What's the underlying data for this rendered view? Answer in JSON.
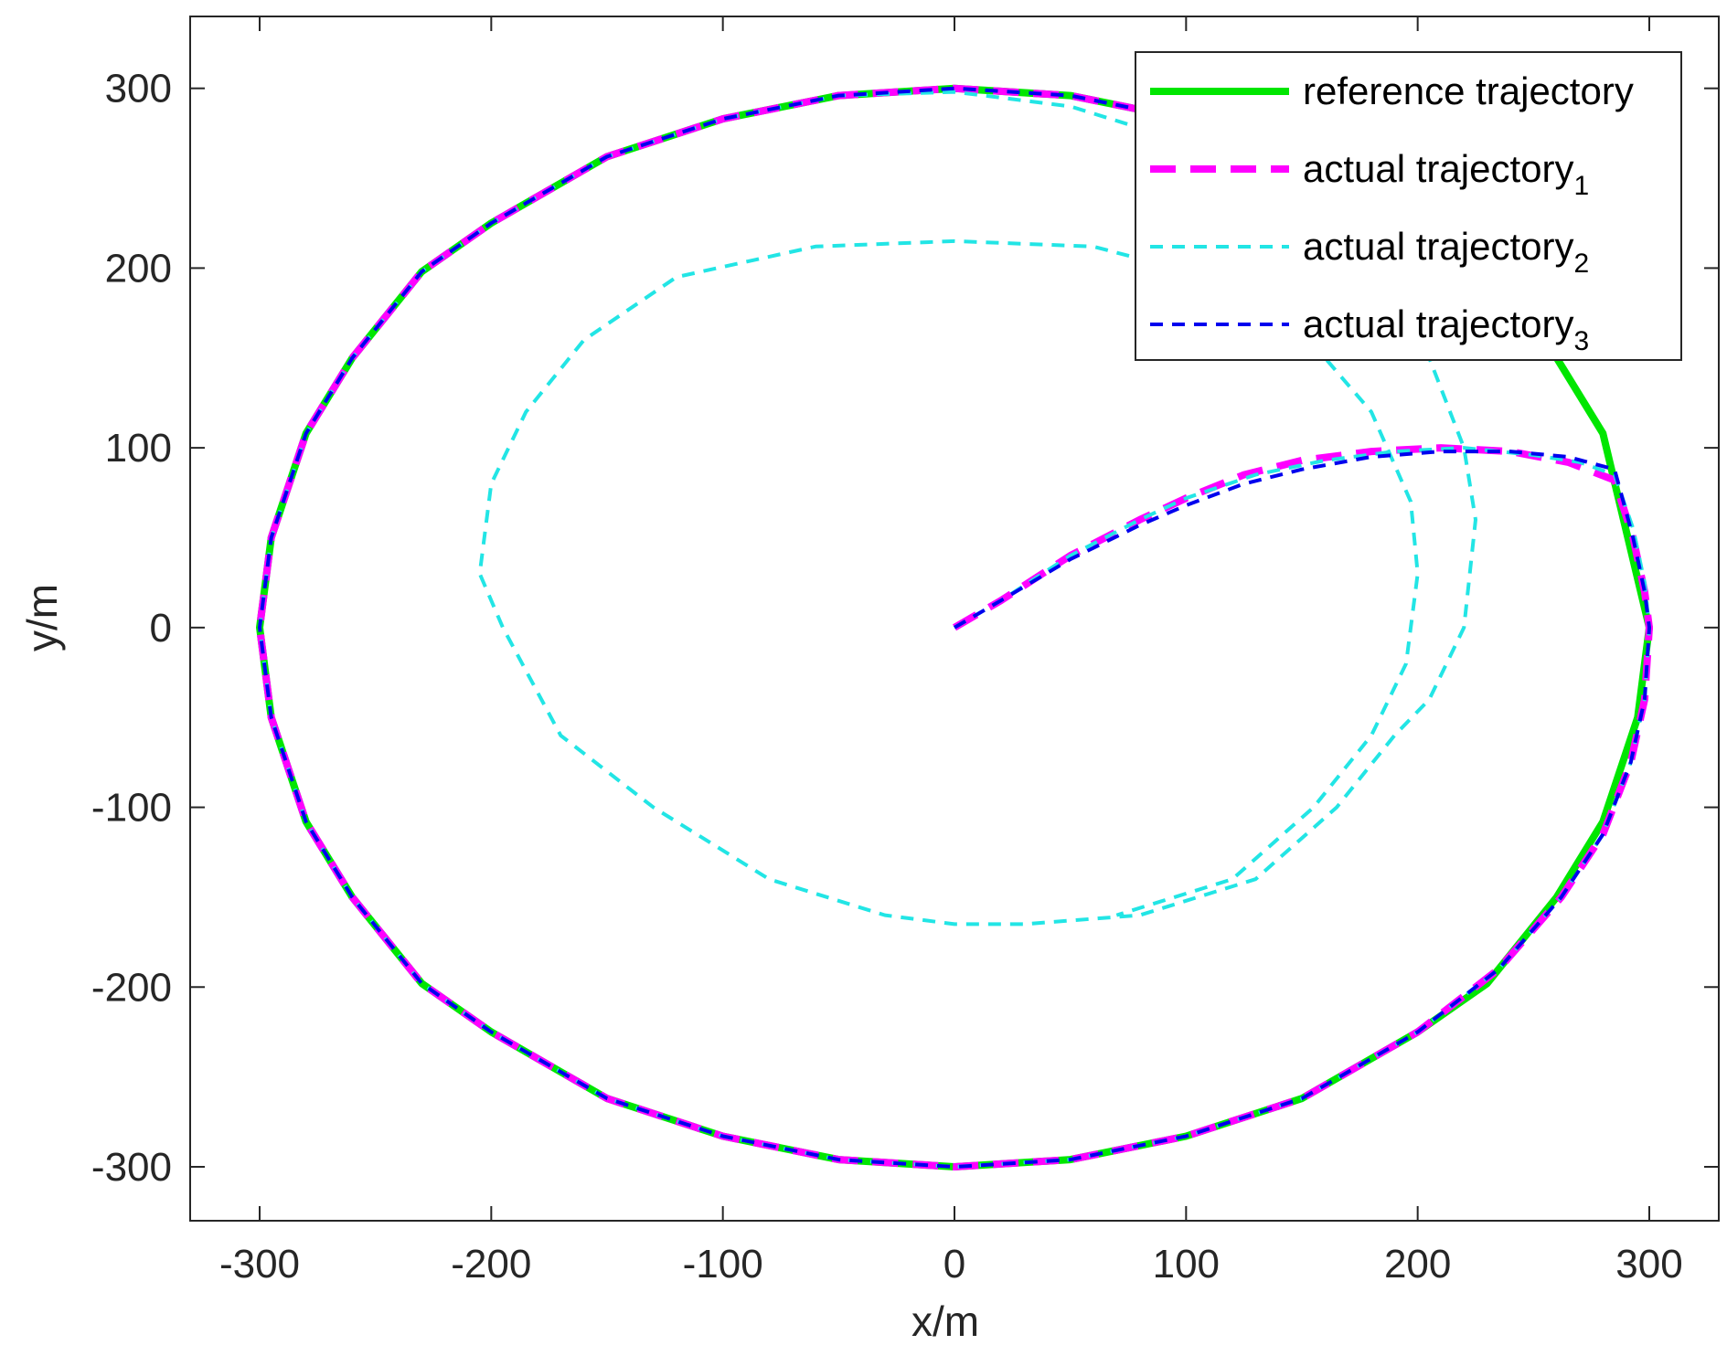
{
  "chart_data": {
    "type": "line",
    "title": "",
    "xlabel": "x/m",
    "ylabel": "y/m",
    "xlim": [
      -330,
      330
    ],
    "ylim": [
      -330,
      340
    ],
    "xticks": [
      -300,
      -200,
      -100,
      0,
      100,
      200,
      300
    ],
    "yticks": [
      -300,
      -200,
      -100,
      0,
      100,
      200,
      300
    ],
    "grid": false,
    "legend_position": "top-right",
    "series": [
      {
        "name": "reference trajectory",
        "legend_main": "reference trajectory",
        "legend_sub": "",
        "color": "#00e600",
        "style": "solid",
        "x": [
          300,
          280,
          260,
          230,
          200,
          150,
          100,
          50,
          0,
          -50,
          -100,
          -150,
          -200,
          -230,
          -260,
          -280,
          -295,
          -300,
          -295,
          -280,
          -260,
          -230,
          -200,
          -150,
          -100,
          -50,
          0,
          50,
          100,
          150,
          200,
          230,
          260,
          280,
          295,
          300
        ],
        "y": [
          0,
          108,
          150,
          198,
          225,
          262,
          283,
          296,
          300,
          296,
          283,
          262,
          225,
          198,
          150,
          108,
          50,
          0,
          -50,
          -108,
          -150,
          -198,
          -225,
          -262,
          -283,
          -296,
          -300,
          -296,
          -283,
          -262,
          -225,
          -198,
          -150,
          -108,
          -50,
          0
        ]
      },
      {
        "name": "actual trajectory1",
        "legend_main": "actual trajectory",
        "legend_sub": "1",
        "color": "#ff00ff",
        "style": "dashed-thick",
        "x": [
          0,
          20,
          50,
          80,
          100,
          125,
          150,
          180,
          210,
          240,
          265,
          285,
          293,
          298,
          300,
          298,
          292,
          280,
          262,
          235,
          200,
          150,
          100,
          50,
          0,
          -50,
          -100,
          -150,
          -200,
          -230,
          -260,
          -280,
          -295,
          -300,
          -295,
          -280,
          -260,
          -230,
          -200,
          -150,
          -100,
          -50,
          0,
          50,
          100,
          150,
          200
        ],
        "y": [
          0,
          15,
          40,
          60,
          72,
          85,
          93,
          98,
          100,
          98,
          92,
          82,
          50,
          20,
          0,
          -40,
          -75,
          -115,
          -150,
          -190,
          -225,
          -262,
          -283,
          -296,
          -300,
          -296,
          -283,
          -262,
          -225,
          -198,
          -150,
          -108,
          -50,
          0,
          50,
          108,
          150,
          198,
          225,
          262,
          283,
          296,
          300,
          296,
          283,
          262,
          228
        ]
      },
      {
        "name": "actual trajectory2",
        "legend_main": "actual trajectory",
        "legend_sub": "2",
        "color": "#22e5e5",
        "style": "dashed",
        "x": [
          0,
          20,
          50,
          80,
          100,
          130,
          160,
          190,
          220,
          250,
          270,
          285,
          293,
          298,
          300,
          298,
          292,
          280,
          262,
          235,
          200,
          150,
          100,
          50,
          0,
          -50,
          -100,
          -150,
          -200,
          -230,
          -260,
          -280,
          -295,
          -300,
          -295,
          -280,
          -260,
          -230,
          -200,
          -150,
          -100,
          -50,
          0,
          50,
          100,
          150,
          180,
          205,
          220,
          225,
          220,
          205,
          190,
          165,
          130,
          80,
          30,
          0,
          -30,
          -80,
          -130,
          -170,
          -195,
          -205,
          -200,
          -185,
          -160,
          -120,
          -60,
          0,
          60,
          110,
          150,
          180,
          197,
          200,
          195,
          180,
          155,
          120,
          70
        ],
        "y": [
          0,
          15,
          40,
          60,
          72,
          85,
          93,
          98,
          100,
          96,
          92,
          85,
          55,
          25,
          0,
          -40,
          -75,
          -115,
          -150,
          -190,
          -225,
          -262,
          -283,
          -296,
          -300,
          -296,
          -283,
          -262,
          -225,
          -198,
          -150,
          -108,
          -50,
          0,
          50,
          108,
          150,
          198,
          225,
          262,
          283,
          296,
          298,
          290,
          270,
          230,
          195,
          150,
          100,
          60,
          0,
          -40,
          -60,
          -100,
          -140,
          -160,
          -165,
          -165,
          -160,
          -140,
          -100,
          -60,
          0,
          30,
          80,
          120,
          160,
          195,
          212,
          215,
          212,
          195,
          165,
          120,
          70,
          30,
          -20,
          -60,
          -100,
          -140,
          -160
        ]
      },
      {
        "name": "actual trajectory3",
        "legend_main": "actual trajectory",
        "legend_sub": "3",
        "color": "#0000ee",
        "style": "dashed",
        "x": [
          0,
          20,
          50,
          80,
          100,
          125,
          150,
          180,
          210,
          240,
          265,
          285,
          293,
          298,
          300,
          298,
          292,
          280,
          262,
          235,
          200,
          150,
          100,
          50,
          0,
          -50,
          -100,
          -150,
          -200,
          -230,
          -260,
          -280,
          -295,
          -300,
          -295,
          -280,
          -260,
          -230,
          -200,
          -150,
          -100,
          -50,
          0,
          50,
          100,
          150,
          200
        ],
        "y": [
          0,
          15,
          38,
          57,
          68,
          80,
          88,
          95,
          98,
          98,
          95,
          88,
          50,
          20,
          0,
          -40,
          -75,
          -115,
          -150,
          -190,
          -225,
          -262,
          -283,
          -296,
          -300,
          -296,
          -283,
          -262,
          -225,
          -198,
          -150,
          -108,
          -50,
          0,
          50,
          108,
          150,
          198,
          225,
          262,
          283,
          296,
          300,
          296,
          283,
          262,
          228
        ]
      }
    ]
  }
}
